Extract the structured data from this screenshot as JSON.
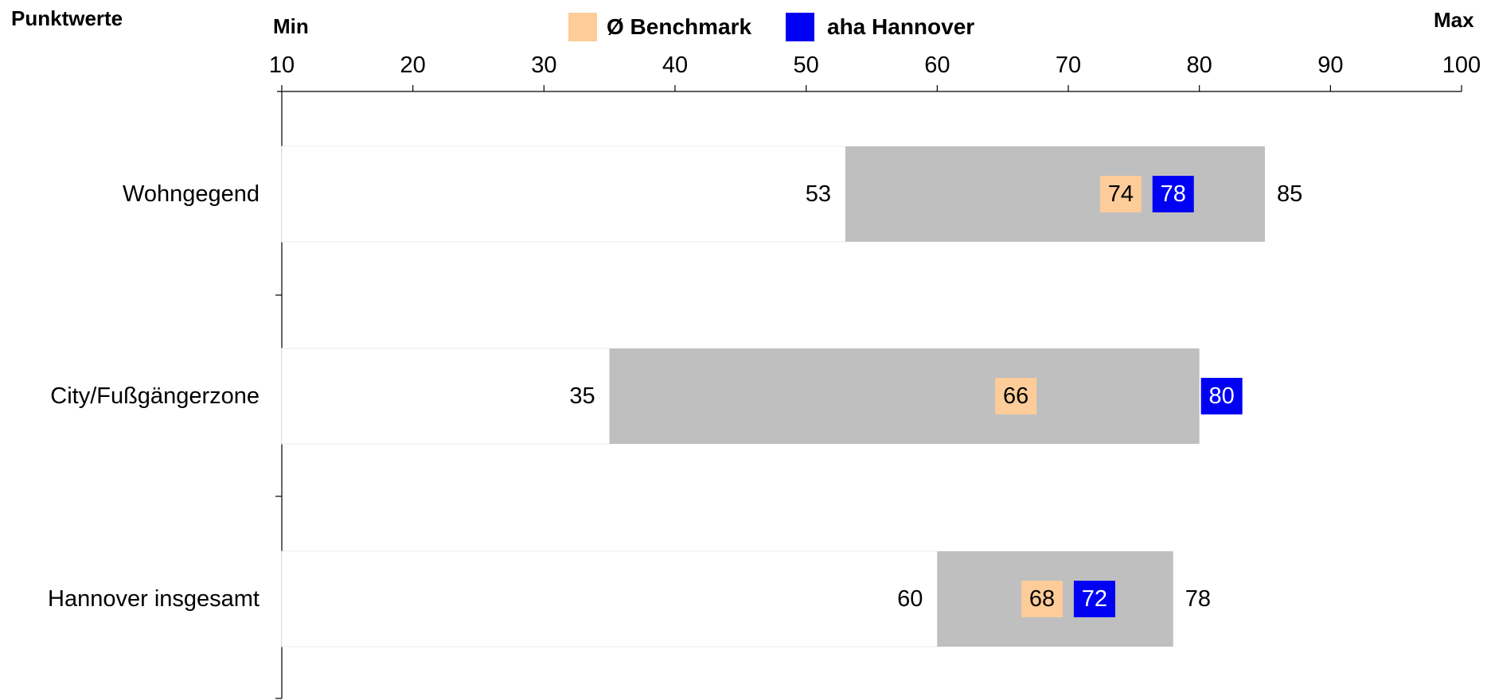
{
  "header": {
    "title": "Punktwerte",
    "min_label": "Min",
    "max_label": "Max"
  },
  "legend": {
    "benchmark": {
      "label": "Ø Benchmark",
      "color": "#FDCC99"
    },
    "aha": {
      "label": "aha Hannover",
      "color": "#0000F5"
    }
  },
  "chart_data": {
    "type": "bar",
    "title": "Punktwerte",
    "x_axis": {
      "min": 10,
      "max": 100,
      "ticks": [
        10,
        20,
        30,
        40,
        50,
        60,
        70,
        80,
        90,
        100
      ],
      "min_label": "Min",
      "max_label": "Max"
    },
    "range_color": "#BFBFBF",
    "categories": [
      "Wohngegend",
      "City/Fußgängerzone",
      "Hannover insgesamt"
    ],
    "rows": [
      {
        "label": "Wohngegend",
        "min": 53,
        "max": 85,
        "benchmark": 74,
        "aha": 78
      },
      {
        "label": "City/Fußgängerzone",
        "min": 35,
        "max": 80,
        "benchmark": 66,
        "aha": 80
      },
      {
        "label": "Hannover insgesamt",
        "min": 60,
        "max": 78,
        "benchmark": 68,
        "aha": 72
      }
    ],
    "legend": [
      "Ø Benchmark",
      "aha Hannover"
    ],
    "legend_position": "top",
    "grid": false
  }
}
